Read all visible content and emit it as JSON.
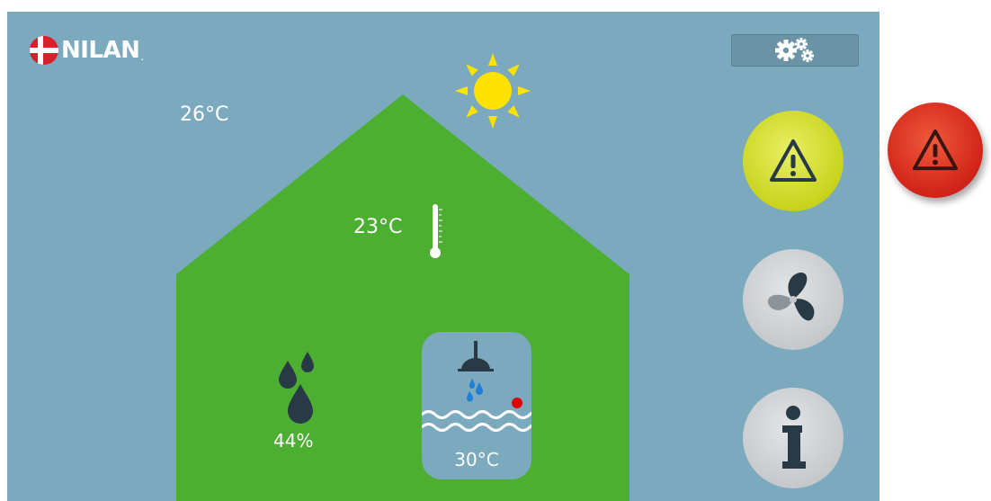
{
  "header": {
    "logo_text": "NILAN",
    "logo_mark": ".",
    "settings_icon": "gears-icon"
  },
  "climate": {
    "outdoor_temp": "26°C",
    "indoor_temp": "23°C",
    "humidity": "44%",
    "hot_water_temp": "30°C",
    "weather_icon": "sun-icon"
  },
  "side_buttons": [
    {
      "name": "alarm",
      "icon": "warning-icon"
    },
    {
      "name": "ventilation",
      "icon": "fan-icon"
    },
    {
      "name": "info",
      "icon": "info-icon"
    }
  ],
  "colors": {
    "screen_bg": "#7ba9bd",
    "house_green": "#4caf32",
    "sun_yellow": "#ffe200",
    "alarm_yellow": "#d3dc23",
    "alarm_red": "#d4261b",
    "button_gray": "#c4c7ca",
    "dark_icon": "#283a45",
    "water_drop_blue": "#1f7ed6",
    "status_dot_red": "#e00000"
  }
}
